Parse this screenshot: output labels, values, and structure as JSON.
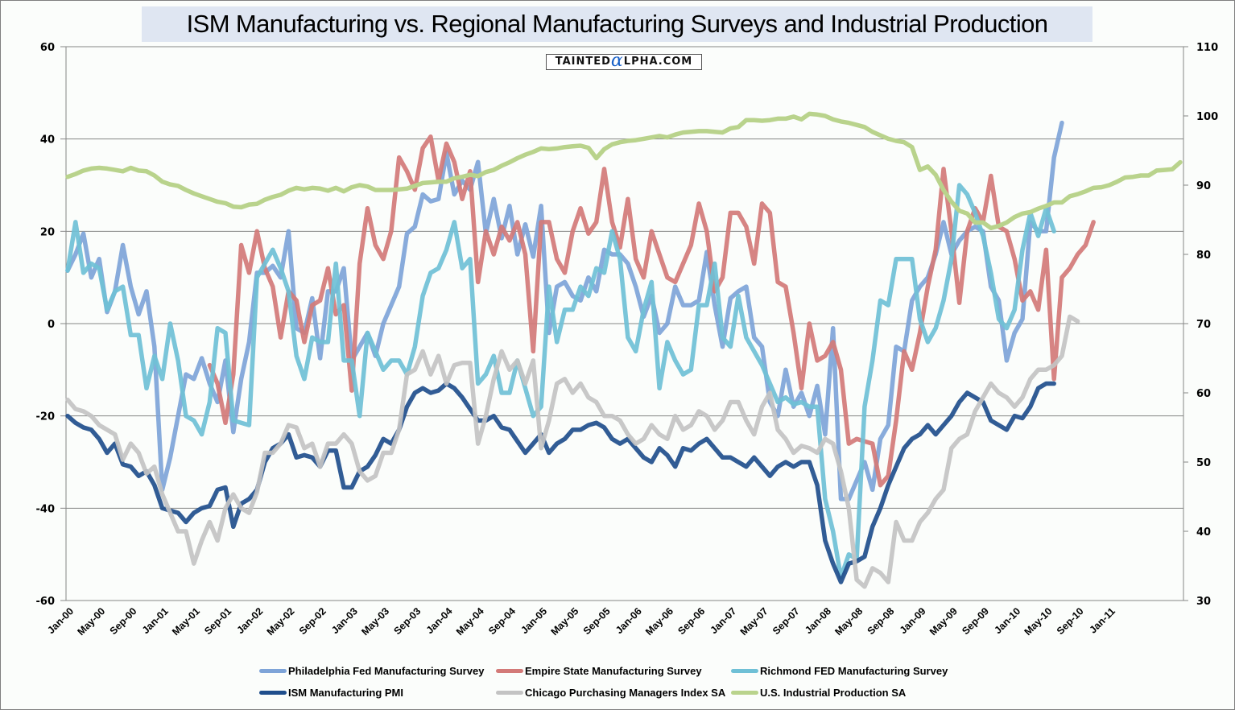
{
  "chart_data": {
    "type": "line",
    "title": "ISM Manufacturing vs. Regional Manufacturing Surveys and Industrial Production",
    "watermark": {
      "prefix": "TAINTED",
      "alpha": "α",
      "suffix": "LPHA.COM"
    },
    "xlabel": "",
    "ylabel": "",
    "y_left": {
      "range": [
        -60,
        60
      ],
      "ticks": [
        60,
        40,
        20,
        0,
        -20,
        -40,
        -60
      ],
      "tick_labels": [
        "60",
        "40",
        "20",
        "0",
        "-20",
        "-40",
        "-60"
      ]
    },
    "y_right": {
      "range": [
        30,
        110
      ],
      "ticks": [
        110,
        100,
        90,
        80,
        70,
        60,
        50,
        40,
        30
      ],
      "tick_labels": [
        "110",
        "100",
        "90",
        "80",
        "70",
        "60",
        "50",
        "40",
        "30"
      ]
    },
    "grid": true,
    "legend_position": "bottom",
    "x_start": "Jan-00",
    "x_end": "Apr-11",
    "x_tick_labels": [
      "Jan-00",
      "May-00",
      "Sep-00",
      "Jan-01",
      "May-01",
      "Sep-01",
      "Jan-02",
      "May-02",
      "Sep-02",
      "Jan-03",
      "May-03",
      "Sep-03",
      "Jan-04",
      "May-04",
      "Sep-04",
      "Jan-05",
      "May-05",
      "Sep-05",
      "Jan-06",
      "May-06",
      "Sep-06",
      "Jan-07",
      "May-07",
      "Sep-07",
      "Jan-08",
      "May-08",
      "Sep-08",
      "Jan-09",
      "May-09",
      "Sep-09",
      "Jan-10",
      "May-10",
      "Sep-10",
      "Jan-11"
    ],
    "series": [
      {
        "name": "Philadelphia Fed Manufacturing Survey",
        "axis": "left",
        "color": "#7ea4d8",
        "values": [
          11.5,
          15,
          19.5,
          10,
          14,
          2.5,
          7,
          17,
          8,
          2,
          7,
          -5,
          -36,
          -29,
          -20,
          -11,
          -12,
          -7.5,
          -13,
          -17,
          -8,
          -23.5,
          -12,
          -4,
          11,
          11,
          12.5,
          10,
          20,
          -1,
          -2,
          5.5,
          -7.5,
          7,
          7,
          12,
          -8,
          -5,
          -2,
          -7,
          0,
          4,
          8,
          19.5,
          21,
          28,
          26.5,
          27,
          37,
          28,
          31,
          29,
          35,
          19.5,
          27,
          18.5,
          25.5,
          15,
          21.5,
          14.5,
          25.5,
          -2,
          8,
          9,
          6,
          5,
          10,
          7,
          16,
          15,
          15,
          13,
          8,
          1.5,
          6,
          -2,
          0,
          8,
          4,
          4,
          5,
          15.5,
          4,
          -5,
          5.5,
          7,
          8,
          -3,
          -5,
          -17,
          -20,
          -10,
          -18,
          -15,
          -20,
          -13.5,
          -24,
          -1,
          -38,
          -38,
          -34,
          -30,
          -36,
          -25,
          -22,
          -5,
          -6,
          5,
          8,
          10,
          15,
          22,
          15,
          18,
          20,
          21,
          20,
          8,
          5,
          -8,
          -2,
          1,
          22,
          20,
          20,
          36,
          43.5
        ]
      },
      {
        "name": "Empire State Manufacturing Survey",
        "axis": "left",
        "color": "#d37a78",
        "values": [
          null,
          null,
          null,
          null,
          null,
          null,
          null,
          null,
          null,
          null,
          null,
          null,
          null,
          null,
          null,
          null,
          null,
          null,
          -9,
          -13,
          -21.5,
          -11,
          17,
          11,
          20,
          12,
          8,
          -3,
          7,
          5,
          -4,
          4,
          5,
          12,
          2,
          4,
          -14.5,
          13,
          25,
          17,
          14,
          20,
          36,
          33,
          29,
          38,
          40.5,
          31,
          39,
          35,
          27,
          33,
          9,
          20,
          15,
          21,
          18,
          22,
          15,
          -6,
          22,
          22,
          14,
          11,
          20,
          25,
          19.5,
          22,
          33.5,
          22,
          16.5,
          27,
          14,
          10,
          20,
          15,
          10,
          9,
          13,
          17,
          26,
          20,
          7,
          10,
          24,
          24,
          21,
          13,
          26,
          24,
          9,
          8,
          -2,
          -14,
          0,
          -8,
          -7,
          -4,
          -10,
          -26,
          -25,
          -25.5,
          -26,
          -35,
          -33,
          -21,
          -6,
          -10,
          -2,
          8,
          16,
          33.5,
          20,
          4.5,
          20,
          25,
          22,
          32,
          21,
          20,
          14,
          5,
          7,
          3,
          16,
          -12,
          10,
          12,
          15,
          17,
          22
        ]
      },
      {
        "name": "Richmond FED Manufacturing Survey",
        "axis": "left",
        "color": "#6fc0d6",
        "values": [
          11.5,
          22,
          11,
          13,
          12,
          3,
          7,
          8,
          -2.5,
          -2.5,
          -14,
          -7,
          -12,
          0,
          -8,
          -20,
          -21,
          -24,
          -17,
          -1,
          -2,
          -21,
          -21.5,
          -22,
          10,
          13,
          16,
          12,
          7,
          -7,
          -12,
          -3,
          -4,
          -4,
          13,
          -8,
          -8,
          -20,
          -2,
          -6,
          -10,
          -8,
          -8,
          -11,
          -5,
          6,
          11,
          12,
          16,
          22,
          12,
          14,
          -13,
          -11,
          -7,
          -15,
          -15,
          -8,
          -14,
          -20,
          -18,
          8,
          -4,
          3,
          3,
          8,
          6,
          12,
          11,
          20,
          14,
          -3,
          -6,
          3,
          9,
          -14,
          -4,
          -8,
          -11,
          -10,
          4,
          4,
          13,
          -3,
          -5,
          6,
          -3,
          -6,
          -9,
          -13,
          -17,
          -16,
          -17.5,
          -17,
          -18,
          -18,
          -38,
          -45,
          -55,
          -50,
          -51,
          -18,
          -8,
          5,
          4,
          14,
          14,
          14,
          1,
          -4,
          -1,
          5,
          14,
          30,
          28,
          24,
          19,
          11,
          1,
          -1,
          3,
          16,
          24,
          19,
          25,
          20
        ]
      },
      {
        "name": "ISM Manufacturing PMI",
        "axis": "left",
        "color": "#1f4e8c",
        "values": [
          -20,
          -21.5,
          -22.5,
          -23,
          -25,
          -28,
          -26,
          -30.5,
          -31,
          -33,
          -32,
          -35,
          -40,
          -40.5,
          -41,
          -43,
          -41,
          -40,
          -39.5,
          -36,
          -35.5,
          -44,
          -39,
          -38,
          -36,
          -30,
          -27,
          -26,
          -24,
          -29,
          -28.5,
          -29,
          -31,
          -27.5,
          -27.5,
          -35.5,
          -35.5,
          -32,
          -31,
          -28.5,
          -25,
          -26,
          -23,
          -18,
          -15,
          -14,
          -15,
          -14.5,
          -13,
          -14,
          -16,
          -18.5,
          -21,
          -21,
          -20,
          -22.5,
          -23,
          -25.5,
          -28,
          -26,
          -24,
          -28,
          -26,
          -25,
          -23,
          -23,
          -22,
          -21.5,
          -22.5,
          -25,
          -26,
          -25,
          -27,
          -29,
          -30,
          -27,
          -28.5,
          -31,
          -27,
          -27.5,
          -26,
          -25,
          -27,
          -29,
          -29,
          -30,
          -31,
          -29,
          -31,
          -33,
          -31,
          -30,
          -31,
          -30,
          -30,
          -35,
          -47,
          -52,
          -56,
          -52,
          -51.5,
          -50.5,
          -44,
          -40,
          -35,
          -31,
          -27,
          -25,
          -24,
          -22,
          -24,
          -22,
          -20,
          -17,
          -15,
          -16,
          -17,
          -21,
          -22,
          -23,
          -20,
          -20.5,
          -18,
          -14,
          -13,
          -13
        ]
      },
      {
        "name": "Chicago Purchasing Managers Index SA",
        "axis": "left",
        "color": "#c3c3c3",
        "values": [
          -16.5,
          -18.5,
          -19,
          -20,
          -22,
          -23,
          -24,
          -29.5,
          -26,
          -28,
          -32.5,
          -31,
          -37,
          -41,
          -45,
          -45,
          -52,
          -47,
          -43,
          -47,
          -40,
          -37,
          -40,
          -41,
          -36.5,
          -28,
          -28,
          -26,
          -22,
          -22.5,
          -27,
          -26,
          -31,
          -26,
          -26,
          -24,
          -26,
          -32,
          -34,
          -33,
          -28,
          -28,
          -23,
          -11,
          -10,
          -6,
          -11,
          -7,
          -13,
          -9,
          -8.5,
          -8.5,
          -26,
          -20,
          -12,
          -6,
          -10,
          -8,
          -13,
          -8,
          -27,
          -21,
          -13,
          -12,
          -15,
          -13,
          -16,
          -17,
          -20,
          -20,
          -21,
          -24,
          -26,
          -25,
          -22,
          -24,
          -25,
          -20,
          -23,
          -22,
          -19,
          -20,
          -23,
          -21,
          -17,
          -17,
          -21,
          -24,
          -18,
          -15,
          -23,
          -25,
          -28,
          -26.5,
          -27,
          -28,
          -25,
          -26,
          -32,
          -40,
          -55.5,
          -57,
          -53,
          -54,
          -56,
          -43,
          -47,
          -47,
          -43,
          -41,
          -38,
          -36,
          -27,
          -25,
          -24,
          -19,
          -16,
          -13,
          -15,
          -16,
          -18,
          -16,
          -12,
          -10,
          -10,
          -9,
          -7,
          1.5,
          0.5
        ]
      },
      {
        "name": "U.S. Industrial Production SA",
        "axis": "right",
        "color": "#b9d38c",
        "values": [
          91.2,
          91.6,
          92.1,
          92.4,
          92.5,
          92.4,
          92.2,
          92.0,
          92.5,
          92.1,
          92.0,
          91.4,
          90.5,
          90.1,
          89.9,
          89.3,
          88.8,
          88.4,
          88.0,
          87.6,
          87.4,
          86.9,
          86.8,
          87.2,
          87.3,
          87.9,
          88.3,
          88.6,
          89.2,
          89.6,
          89.4,
          89.6,
          89.5,
          89.2,
          89.6,
          89.1,
          89.7,
          90.0,
          89.8,
          89.3,
          89.3,
          89.3,
          89.4,
          89.5,
          89.9,
          90.3,
          90.4,
          90.5,
          90.5,
          91.0,
          91.2,
          91.5,
          91.3,
          91.9,
          92.2,
          92.8,
          93.3,
          93.9,
          94.4,
          94.8,
          95.3,
          95.2,
          95.3,
          95.5,
          95.6,
          95.7,
          95.4,
          93.9,
          95.2,
          95.9,
          96.2,
          96.4,
          96.5,
          96.7,
          96.9,
          97.1,
          96.9,
          97.3,
          97.6,
          97.7,
          97.8,
          97.8,
          97.7,
          97.6,
          98.2,
          98.4,
          99.4,
          99.4,
          99.3,
          99.4,
          99.6,
          99.6,
          99.9,
          99.5,
          100.3,
          100.2,
          100.0,
          99.5,
          99.2,
          99.0,
          98.7,
          98.4,
          97.7,
          97.2,
          96.7,
          96.4,
          96.2,
          95.5,
          92.2,
          92.7,
          91.5,
          89.3,
          87.6,
          86.3,
          85.9,
          84.6,
          84.6,
          83.8,
          84.1,
          84.6,
          85.4,
          85.9,
          86.1,
          86.6,
          87.0,
          87.5,
          87.5,
          88.4,
          88.7,
          89.1,
          89.6,
          89.7,
          90.0,
          90.5,
          91.1,
          91.2,
          91.4,
          91.4,
          92.1,
          92.2,
          92.3,
          93.3
        ]
      }
    ]
  }
}
